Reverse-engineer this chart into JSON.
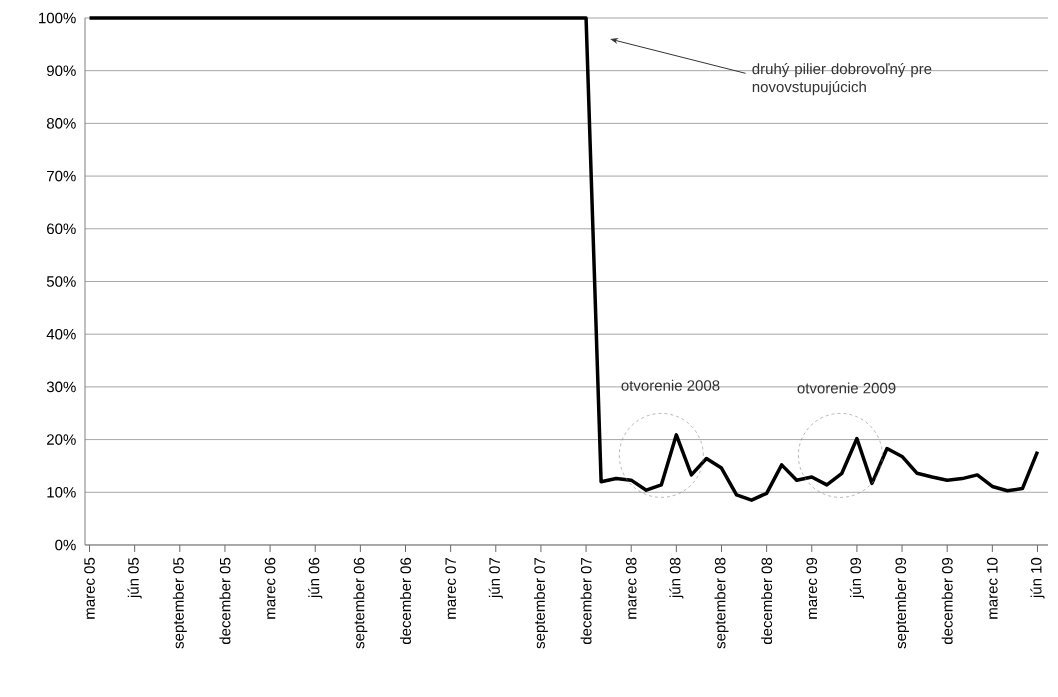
{
  "chart_data": {
    "type": "line",
    "categories": [
      "marec 05",
      null,
      null,
      "jún 05",
      null,
      null,
      "september 05",
      null,
      null,
      "december 05",
      null,
      null,
      "marec 06",
      null,
      null,
      "jún 06",
      null,
      null,
      "september 06",
      null,
      null,
      "december 06",
      null,
      null,
      "marec 07",
      null,
      null,
      "jún 07",
      null,
      null,
      "september 07",
      null,
      null,
      "december 07",
      null,
      null,
      "marec 08",
      null,
      null,
      "jún 08",
      null,
      null,
      "september 08",
      null,
      null,
      "december 08",
      null,
      null,
      "marec 09",
      null,
      null,
      "jún 09",
      null,
      null,
      "september 09",
      null,
      null,
      "december 09",
      null,
      null,
      "marec 10",
      null,
      null,
      "jún 10"
    ],
    "series": [
      {
        "color": "#000000",
        "values": [
          100,
          100,
          100,
          100,
          100,
          100,
          100,
          100,
          100,
          100,
          100,
          100,
          100,
          100,
          100,
          100,
          100,
          100,
          100,
          100,
          100,
          100,
          100,
          100,
          100,
          100,
          100,
          100,
          100,
          100,
          100,
          100,
          100,
          100,
          12.0,
          12.6,
          12.3,
          10.4,
          11.4,
          20.9,
          13.3,
          16.4,
          14.6,
          9.5,
          8.5,
          9.8,
          15.2,
          12.3,
          12.9,
          11.4,
          13.6,
          20.2,
          11.7,
          18.3,
          16.8,
          13.6,
          12.9,
          12.3,
          12.6,
          13.3,
          11.1,
          10.3,
          10.7,
          17.7
        ]
      }
    ],
    "ylim": [
      0,
      100
    ],
    "yticks": [
      {
        "value": 0,
        "label": "0%"
      },
      {
        "value": 10,
        "label": "10%"
      },
      {
        "value": 20,
        "label": "20%"
      },
      {
        "value": 30,
        "label": "30%"
      },
      {
        "value": 40,
        "label": "40%"
      },
      {
        "value": 50,
        "label": "50%"
      },
      {
        "value": 60,
        "label": "60%"
      },
      {
        "value": 70,
        "label": "70%"
      },
      {
        "value": 80,
        "label": "80%"
      },
      {
        "value": 90,
        "label": "90%"
      },
      {
        "value": 100,
        "label": "100%"
      }
    ],
    "grid": "y",
    "legend": false,
    "line_style": "solid",
    "annotations": [
      "druhý pilier dobrovoľný pre novovstupujúcich",
      "otvorenie 2008",
      "otvorenie 2009"
    ]
  }
}
